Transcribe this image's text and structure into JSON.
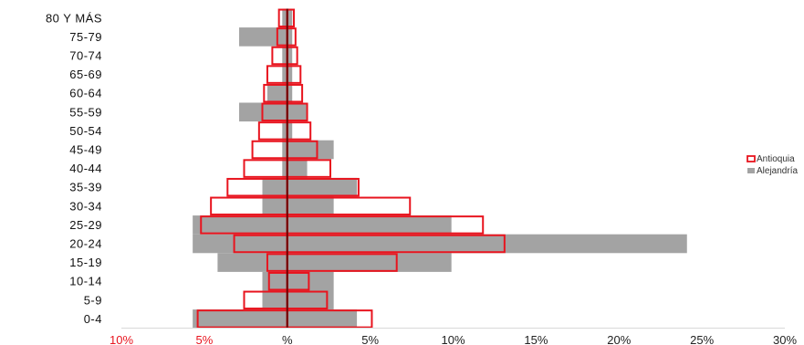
{
  "chart_data": {
    "type": "bar",
    "orientation": "horizontal",
    "layout": "population-pyramid",
    "categories": [
      "80 Y MÁS",
      "75-79",
      "70-74",
      "65-69",
      "60-64",
      "55-59",
      "50-54",
      "45-49",
      "40-44",
      "35-39",
      "30-34",
      "25-29",
      "20-24",
      "15-19",
      "10-14",
      "5-9",
      "0-4"
    ],
    "series": [
      {
        "name": "Alejandría",
        "style": "filled",
        "color": "#a3a3a3",
        "left": [
          0.3,
          2.9,
          0.3,
          0.3,
          1.2,
          2.9,
          0.3,
          0.3,
          0.3,
          1.5,
          1.5,
          5.7,
          5.7,
          4.2,
          1.5,
          1.5,
          5.7
        ],
        "right": [
          0.3,
          0.3,
          0.3,
          0.3,
          0.3,
          1.2,
          0.3,
          2.8,
          1.2,
          4.2,
          2.8,
          9.9,
          24.1,
          9.9,
          2.8,
          2.8,
          4.2
        ]
      },
      {
        "name": "Antioquia",
        "style": "outline",
        "color": "#e8141e",
        "left": [
          0.5,
          0.6,
          0.9,
          1.2,
          1.4,
          1.5,
          1.7,
          2.1,
          2.6,
          3.6,
          4.6,
          5.2,
          3.2,
          1.2,
          1.1,
          2.6,
          5.4
        ],
        "right": [
          0.4,
          0.5,
          0.6,
          0.8,
          0.9,
          1.2,
          1.4,
          1.8,
          2.6,
          4.3,
          7.4,
          11.8,
          13.1,
          6.6,
          1.3,
          2.4,
          5.1
        ]
      }
    ],
    "xlim": [
      -10,
      30
    ],
    "xticks": [
      {
        "value": -10,
        "label": "10%",
        "color": "#e8141e"
      },
      {
        "value": -5,
        "label": "5%",
        "color": "#e8141e"
      },
      {
        "value": 0,
        "label": "%",
        "color": "#222222"
      },
      {
        "value": 5,
        "label": "5%",
        "color": "#222222"
      },
      {
        "value": 10,
        "label": "10%",
        "color": "#222222"
      },
      {
        "value": 15,
        "label": "15%",
        "color": "#222222"
      },
      {
        "value": 20,
        "label": "20%",
        "color": "#222222"
      },
      {
        "value": 25,
        "label": "25%",
        "color": "#222222"
      },
      {
        "value": 30,
        "label": "30%",
        "color": "#222222"
      }
    ],
    "legend": {
      "position": "right",
      "items": [
        {
          "label": "Antioquia",
          "style": "outline",
          "color": "#e8141e"
        },
        {
          "label": "Alejandría",
          "style": "filled",
          "color": "#a3a3a3"
        }
      ]
    },
    "center_line_color": "#6b0000",
    "grid": false
  }
}
